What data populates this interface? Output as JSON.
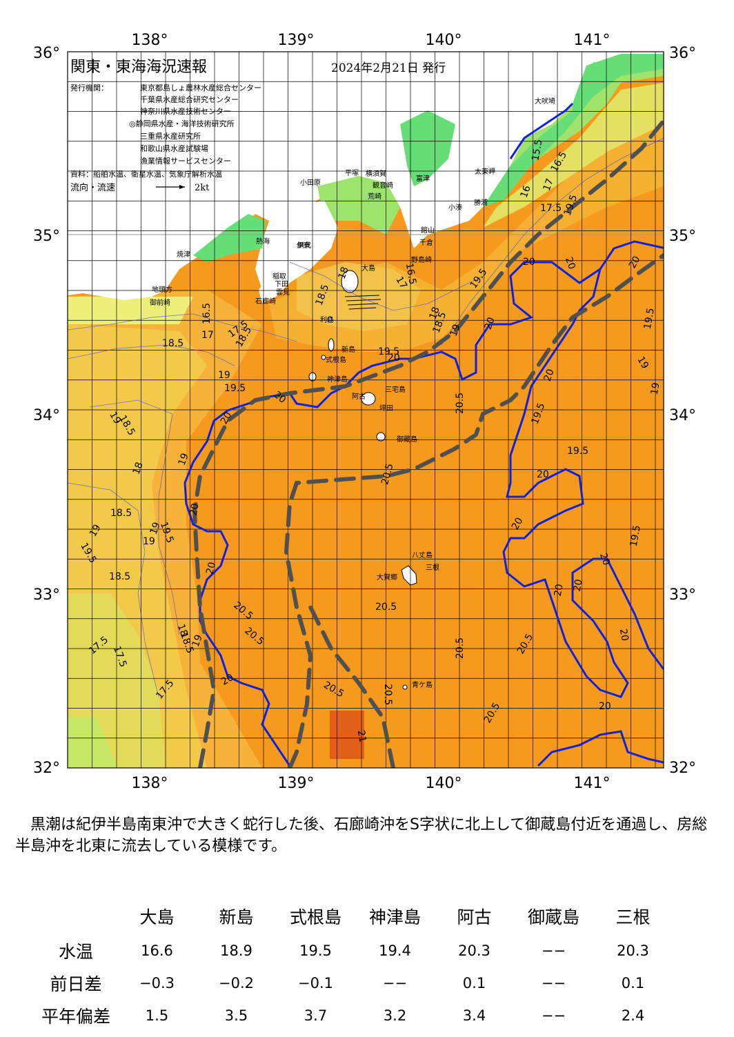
{
  "header": {
    "title": "関東・東海海況速報",
    "date": "2024年2月21日 発行",
    "issuer_label": "発行機関：",
    "issuers": [
      "東京都島しょ農林水産総合センター",
      "千葉県水産総合研究センター",
      "神奈川県水産技術センター",
      "◎静岡県水産・海洋技術研究所",
      "三重県水産研究所",
      "和歌山県水産試験場",
      "漁業情報サービスセンター"
    ],
    "source": "資料：船舶水温、衛星水温、気象庁解析水温",
    "flow_label": "流向・流速",
    "flow_scale": "2kt"
  },
  "axes": {
    "lon_labels": [
      "138°",
      "139°",
      "140°",
      "141°"
    ],
    "lat_labels": [
      "36°",
      "35°",
      "34°",
      "33°",
      "32°"
    ]
  },
  "colors": {
    "land": "#ffffff",
    "coast_green": "#66dd77",
    "kuroshio_axis": "#505050",
    "isotherm_20": "#1020e0",
    "warm_core": "#e06010"
  },
  "place_names": [
    "大吠埼",
    "太東岬",
    "勝浦",
    "小湊",
    "館山",
    "千倉",
    "野島崎",
    "富津",
    "横須賀",
    "観音崎",
    "荒崎",
    "平塚",
    "小田原",
    "熱海",
    "網代",
    "伊東",
    "稲取",
    "下田",
    "石廊崎",
    "雲見",
    "焼津",
    "御前崎",
    "地頭方",
    "大島",
    "利島",
    "新島",
    "式根島",
    "神津島",
    "三宅島",
    "阿古",
    "坪田",
    "御蔵島",
    "八丈島",
    "三根",
    "大賀郷",
    "青ケ島"
  ],
  "isotherm_labels": [
    "15.5",
    "16",
    "16.5",
    "17",
    "17.5",
    "18",
    "18.5",
    "19",
    "19.5",
    "20",
    "20.5",
    "21"
  ],
  "summary": "黒潮は紀伊半島南東沖で大きく蛇行した後、石廊崎沖をS字状に北上して御蔵島付近を通過し、房総半島沖を北東に流去している模様です。",
  "table": {
    "columns": [
      "大島",
      "新島",
      "式根島",
      "神津島",
      "阿古",
      "御蔵島",
      "三根"
    ],
    "rows": [
      {
        "label": "水温",
        "values": [
          "16.6",
          "18.9",
          "19.5",
          "19.4",
          "20.3",
          "−−",
          "20.3"
        ]
      },
      {
        "label": "前日差",
        "values": [
          "−0.3",
          "−0.2",
          "−0.1",
          "−−",
          "0.1",
          "−−",
          "0.1"
        ]
      },
      {
        "label": "平年偏差",
        "values": [
          "1.5",
          "3.5",
          "3.7",
          "3.2",
          "3.4",
          "−−",
          "2.4"
        ]
      }
    ]
  }
}
